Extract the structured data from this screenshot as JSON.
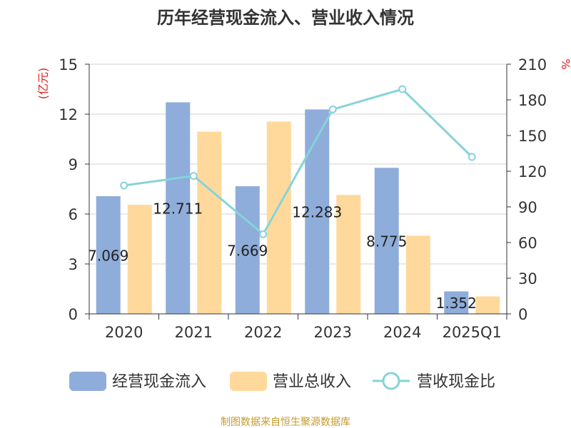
{
  "chart_data": {
    "type": "bar",
    "title": "历年经营现金流入、营业收入情况",
    "categories": [
      "2020",
      "2021",
      "2022",
      "2023",
      "2024",
      "2025Q1"
    ],
    "series": [
      {
        "name": "经营现金流入",
        "axis": "left",
        "kind": "bar",
        "values": [
          7.069,
          12.711,
          7.669,
          12.283,
          8.775,
          1.352
        ],
        "labels": [
          "7.069",
          "12.711",
          "7.669",
          "12.283",
          "8.775",
          "1.352"
        ],
        "color": "#8EADDA"
      },
      {
        "name": "营业总收入",
        "axis": "left",
        "kind": "bar",
        "values": [
          6.55,
          10.95,
          11.55,
          7.15,
          4.7,
          1.05
        ],
        "color": "#FFD99B"
      },
      {
        "name": "营收现金比",
        "axis": "right",
        "kind": "line",
        "values": [
          108,
          116,
          67,
          172,
          189,
          132
        ],
        "color": "#86D3D9"
      }
    ],
    "y_left": {
      "label": "(亿元)",
      "min": 0,
      "max": 15,
      "ticks": [
        "0",
        "3",
        "6",
        "9",
        "12",
        "15"
      ]
    },
    "y_right": {
      "label": "%",
      "min": 0,
      "max": 210,
      "ticks": [
        "0",
        "30",
        "60",
        "90",
        "120",
        "150",
        "180",
        "210"
      ]
    },
    "grid": true,
    "legend_position": "bottom",
    "source": "制图数据来自恒生聚源数据库",
    "colors": {
      "axis_label": "#e02020",
      "source": "#c79a2e",
      "grid": "#d0d0d0",
      "text": "#333333"
    }
  }
}
